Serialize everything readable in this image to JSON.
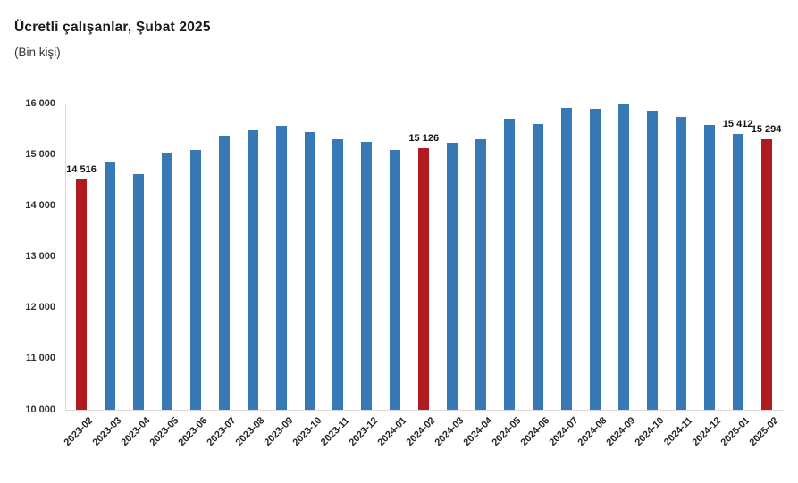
{
  "header": {
    "title": "Ücretli çalışanlar, Şubat 2025",
    "subtitle": "(Bin kişi)"
  },
  "chart_data": {
    "type": "bar",
    "title": "Ücretli çalışanlar, Şubat 2025",
    "subtitle": "(Bin kişi)",
    "unit": "Bin kişi",
    "categories": [
      "2023-02",
      "2023-03",
      "2023-04",
      "2023-05",
      "2023-06",
      "2023-07",
      "2023-08",
      "2023-09",
      "2023-10",
      "2023-11",
      "2023-12",
      "2024-01",
      "2024-02",
      "2024-03",
      "2024-04",
      "2024-05",
      "2024-06",
      "2024-07",
      "2024-08",
      "2024-09",
      "2024-10",
      "2024-11",
      "2024-12",
      "2025-01",
      "2025-02"
    ],
    "values": [
      14516,
      14850,
      14625,
      15035,
      15095,
      15375,
      15480,
      15560,
      15445,
      15300,
      15245,
      15085,
      15126,
      15230,
      15295,
      15705,
      15600,
      15905,
      15900,
      15980,
      15855,
      15740,
      15575,
      15412,
      15294
    ],
    "highlighted_categories": [
      "2023-02",
      "2024-02",
      "2025-02"
    ],
    "data_labels": [
      {
        "category": "2023-02",
        "text": "14 516"
      },
      {
        "category": "2024-02",
        "text": "15 126"
      },
      {
        "category": "2025-01",
        "text": "15 412"
      },
      {
        "category": "2025-02",
        "text": "15 294"
      }
    ],
    "y_axis": {
      "min": 10000,
      "max": 16000,
      "step": 1000,
      "tick_labels": [
        "10 000",
        "11 000",
        "12 000",
        "13 000",
        "14 000",
        "15 000",
        "16 000"
      ]
    },
    "colors": {
      "bar": "#3679B6",
      "highlight": "#B01B20",
      "axis": "#d9d9d9"
    },
    "grid": false,
    "legend": false
  }
}
